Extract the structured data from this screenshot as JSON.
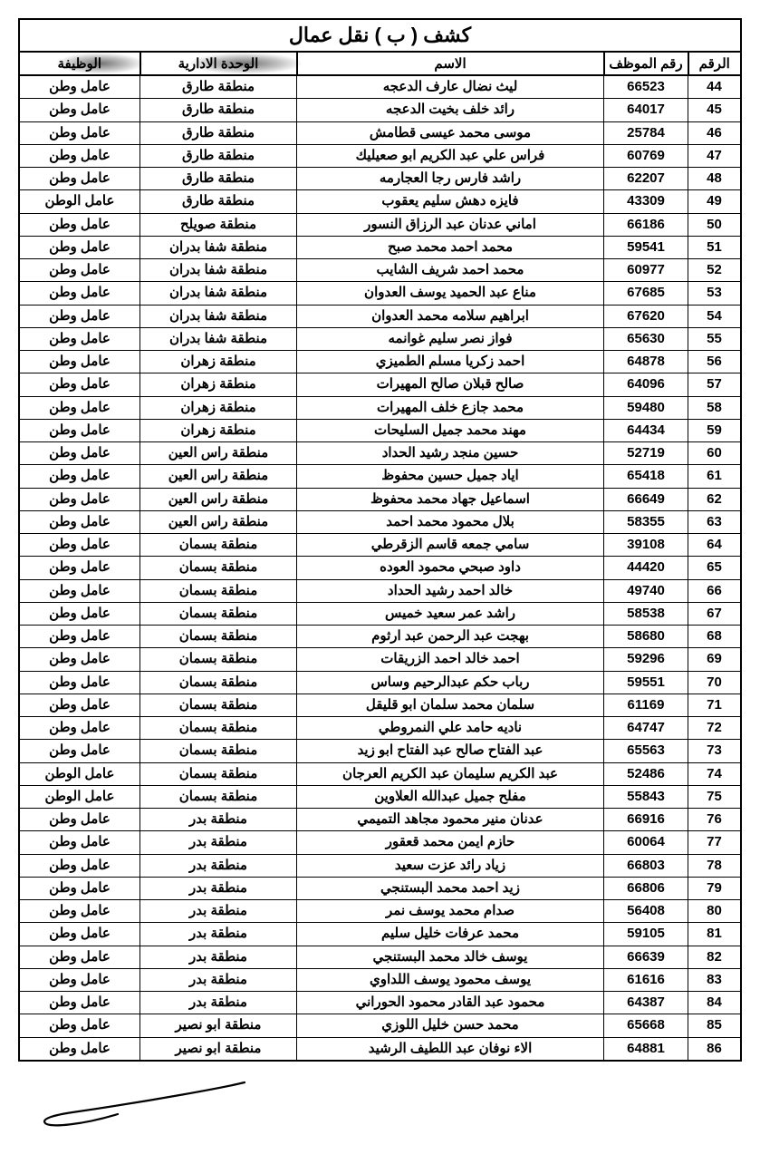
{
  "title": "كشف ( ب ) نقل عمال",
  "columns": {
    "idx": "الرقم",
    "emp": "رقم الموظف",
    "name": "الاسم",
    "unit": "الوحدة الادارية",
    "job": "الوظيفة"
  },
  "rows": [
    {
      "idx": "44",
      "emp": "66523",
      "name": "ليث نضال عارف الدعجه",
      "unit": "منطقة طارق",
      "job": "عامل وطن"
    },
    {
      "idx": "45",
      "emp": "64017",
      "name": "رائد خلف بخيت الدعجه",
      "unit": "منطقة طارق",
      "job": "عامل وطن"
    },
    {
      "idx": "46",
      "emp": "25784",
      "name": "موسى محمد عيسى قطامش",
      "unit": "منطقة طارق",
      "job": "عامل وطن"
    },
    {
      "idx": "47",
      "emp": "60769",
      "name": "فراس علي عبد الكريم ابو صعيليك",
      "unit": "منطقة طارق",
      "job": "عامل وطن"
    },
    {
      "idx": "48",
      "emp": "62207",
      "name": "راشد فارس رجا العجارمه",
      "unit": "منطقة طارق",
      "job": "عامل وطن"
    },
    {
      "idx": "49",
      "emp": "43309",
      "name": "فايزه دهش سليم يعقوب",
      "unit": "منطقة طارق",
      "job": "عامل الوطن"
    },
    {
      "idx": "50",
      "emp": "66186",
      "name": "اماني عدنان عبد الرزاق النسور",
      "unit": "منطقة صويلح",
      "job": "عامل وطن"
    },
    {
      "idx": "51",
      "emp": "59541",
      "name": "محمد احمد محمد صبح",
      "unit": "منطقة شفا بدران",
      "job": "عامل وطن"
    },
    {
      "idx": "52",
      "emp": "60977",
      "name": "محمد احمد شريف الشايب",
      "unit": "منطقة شفا بدران",
      "job": "عامل وطن"
    },
    {
      "idx": "53",
      "emp": "67685",
      "name": "مناع عبد الحميد يوسف العدوان",
      "unit": "منطقة شفا بدران",
      "job": "عامل وطن"
    },
    {
      "idx": "54",
      "emp": "67620",
      "name": "ابراهيم سلامه محمد العدوان",
      "unit": "منطقة شفا بدران",
      "job": "عامل وطن"
    },
    {
      "idx": "55",
      "emp": "65630",
      "name": "فواز نصر سليم غوانمه",
      "unit": "منطقة شفا بدران",
      "job": "عامل وطن"
    },
    {
      "idx": "56",
      "emp": "64878",
      "name": "احمد زكريا مسلم الطميزي",
      "unit": "منطقة زهران",
      "job": "عامل وطن"
    },
    {
      "idx": "57",
      "emp": "64096",
      "name": "صالح قبلان صالح المهيرات",
      "unit": "منطقة زهران",
      "job": "عامل وطن"
    },
    {
      "idx": "58",
      "emp": "59480",
      "name": "محمد جازع خلف المهيرات",
      "unit": "منطقة زهران",
      "job": "عامل وطن"
    },
    {
      "idx": "59",
      "emp": "64434",
      "name": "مهند محمد جميل السليحات",
      "unit": "منطقة زهران",
      "job": "عامل وطن"
    },
    {
      "idx": "60",
      "emp": "52719",
      "name": "حسين منجد رشيد الحداد",
      "unit": "منطقة راس العين",
      "job": "عامل وطن"
    },
    {
      "idx": "61",
      "emp": "65418",
      "name": "اياد جميل حسين محفوظ",
      "unit": "منطقة راس العين",
      "job": "عامل وطن"
    },
    {
      "idx": "62",
      "emp": "66649",
      "name": "اسماعيل جهاد محمد محفوظ",
      "unit": "منطقة راس العين",
      "job": "عامل وطن"
    },
    {
      "idx": "63",
      "emp": "58355",
      "name": "بلال محمود محمد احمد",
      "unit": "منطقة راس العين",
      "job": "عامل وطن"
    },
    {
      "idx": "64",
      "emp": "39108",
      "name": "سامي جمعه قاسم الزقرطي",
      "unit": "منطقة بسمان",
      "job": "عامل وطن"
    },
    {
      "idx": "65",
      "emp": "44420",
      "name": "داود صبحي محمود العوده",
      "unit": "منطقة بسمان",
      "job": "عامل وطن"
    },
    {
      "idx": "66",
      "emp": "49740",
      "name": "خالد احمد رشيد الحداد",
      "unit": "منطقة بسمان",
      "job": "عامل وطن"
    },
    {
      "idx": "67",
      "emp": "58538",
      "name": "راشد عمر سعيد خميس",
      "unit": "منطقة بسمان",
      "job": "عامل وطن"
    },
    {
      "idx": "68",
      "emp": "58680",
      "name": "بهجت عبد الرحمن عبد ارثوم",
      "unit": "منطقة بسمان",
      "job": "عامل وطن"
    },
    {
      "idx": "69",
      "emp": "59296",
      "name": "احمد خالد احمد الزريقات",
      "unit": "منطقة بسمان",
      "job": "عامل وطن"
    },
    {
      "idx": "70",
      "emp": "59551",
      "name": "رباب حكم عبدالرحيم وساس",
      "unit": "منطقة بسمان",
      "job": "عامل وطن"
    },
    {
      "idx": "71",
      "emp": "61169",
      "name": "سلمان محمد سلمان ابو قليقل",
      "unit": "منطقة بسمان",
      "job": "عامل وطن"
    },
    {
      "idx": "72",
      "emp": "64747",
      "name": "ناديه حامد علي النمروطي",
      "unit": "منطقة بسمان",
      "job": "عامل وطن"
    },
    {
      "idx": "73",
      "emp": "65563",
      "name": "عبد الفتاح صالح عبد الفتاح ابو زيد",
      "unit": "منطقة بسمان",
      "job": "عامل وطن"
    },
    {
      "idx": "74",
      "emp": "52486",
      "name": "عبد الكريم سليمان عبد الكريم العرجان",
      "unit": "منطقة بسمان",
      "job": "عامل الوطن"
    },
    {
      "idx": "75",
      "emp": "55843",
      "name": "مفلح جميل عبدالله العلاوين",
      "unit": "منطقة بسمان",
      "job": "عامل الوطن"
    },
    {
      "idx": "76",
      "emp": "66916",
      "name": "عدنان منير محمود مجاهد التميمي",
      "unit": "منطقة بدر",
      "job": "عامل وطن"
    },
    {
      "idx": "77",
      "emp": "60064",
      "name": "حازم ايمن محمد قعقور",
      "unit": "منطقة بدر",
      "job": "عامل وطن"
    },
    {
      "idx": "78",
      "emp": "66803",
      "name": "زياد رائد عزت سعيد",
      "unit": "منطقة بدر",
      "job": "عامل وطن"
    },
    {
      "idx": "79",
      "emp": "66806",
      "name": "زيد احمد محمد البستنجي",
      "unit": "منطقة بدر",
      "job": "عامل وطن"
    },
    {
      "idx": "80",
      "emp": "56408",
      "name": "صدام محمد يوسف نمر",
      "unit": "منطقة بدر",
      "job": "عامل وطن"
    },
    {
      "idx": "81",
      "emp": "59105",
      "name": "محمد عرفات خليل سليم",
      "unit": "منطقة بدر",
      "job": "عامل وطن"
    },
    {
      "idx": "82",
      "emp": "66639",
      "name": "يوسف خالد محمد البستنجي",
      "unit": "منطقة بدر",
      "job": "عامل وطن"
    },
    {
      "idx": "83",
      "emp": "61616",
      "name": "يوسف محمود يوسف اللداوي",
      "unit": "منطقة بدر",
      "job": "عامل وطن"
    },
    {
      "idx": "84",
      "emp": "64387",
      "name": "محمود عبد القادر محمود الحوراني",
      "unit": "منطقة بدر",
      "job": "عامل وطن"
    },
    {
      "idx": "85",
      "emp": "65668",
      "name": "محمد حسن خليل اللوزي",
      "unit": "منطقة ابو نصير",
      "job": "عامل وطن"
    },
    {
      "idx": "86",
      "emp": "64881",
      "name": "الاء نوفان عبد اللطيف الرشيد",
      "unit": "منطقة ابو نصير",
      "job": "عامل وطن"
    }
  ]
}
